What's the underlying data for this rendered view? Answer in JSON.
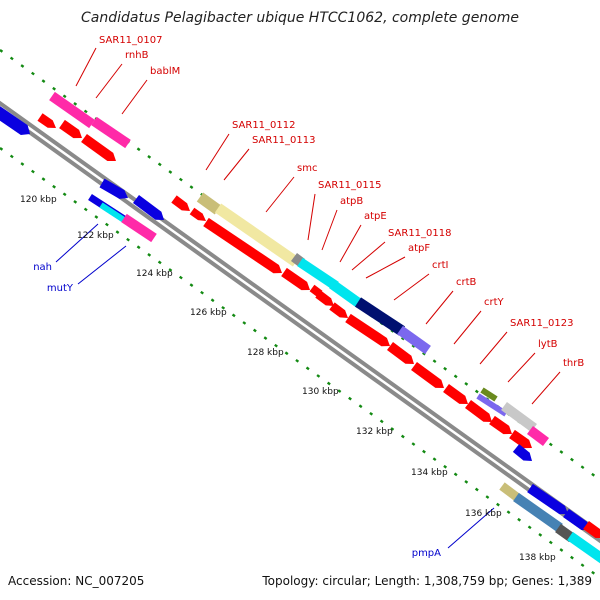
{
  "title": "Candidatus Pelagibacter ubique HTCC1062, complete genome",
  "footer": {
    "accession": "Accession: NC_007205",
    "topology": "Topology: circular; Length: 1,308,759 bp; Genes: 1,389"
  },
  "colors": {
    "forward_label": "#d40000",
    "reverse_label": "#0000cc",
    "cds": "#ff0000",
    "dots": "#138a13",
    "backbone": "#8a8a8a"
  },
  "kbp_ticks": [
    "120 kbp",
    "122 kbp",
    "124 kbp",
    "126 kbp",
    "128 kbp",
    "130 kbp",
    "132 kbp",
    "134 kbp",
    "136 kbp",
    "138 kbp"
  ],
  "gene_labels": {
    "forward": [
      "SAR11_0107",
      "rnhB",
      "bablM",
      "SAR11_0112",
      "SAR11_0113",
      "smc",
      "SAR11_0115",
      "atpB",
      "atpE",
      "SAR11_0118",
      "atpF",
      "crtI",
      "crtB",
      "crtY",
      "SAR11_0123",
      "lytB",
      "thrB"
    ],
    "reverse": [
      "nah",
      "mutY",
      "pmpA"
    ]
  }
}
